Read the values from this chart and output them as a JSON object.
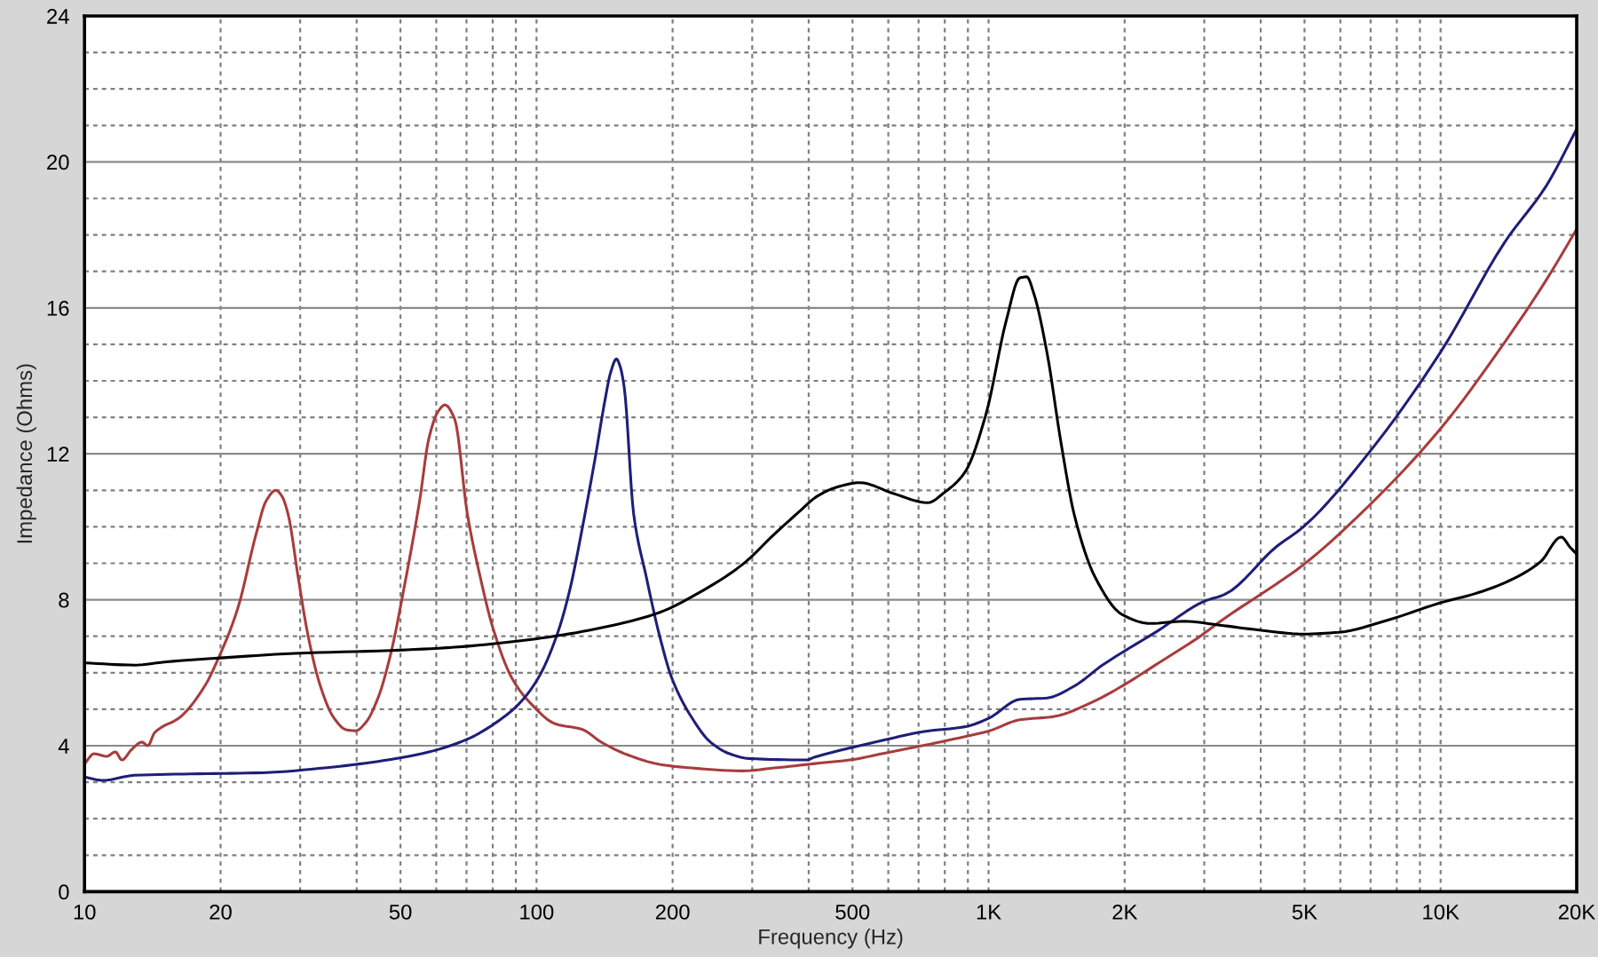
{
  "chart_data": {
    "type": "line",
    "xlabel": "Frequency (Hz)",
    "ylabel": "Impedance (Ohms)",
    "log": "x",
    "grid": true,
    "xlim": [
      10,
      20000
    ],
    "ylim": [
      0,
      24
    ],
    "xticks": [
      10,
      20,
      {
        "value": 30,
        "label": null
      },
      {
        "value": 40,
        "label": null
      },
      50,
      {
        "value": 60,
        "label": null
      },
      {
        "value": 70,
        "label": null
      },
      {
        "value": 80,
        "label": null
      },
      {
        "value": 90,
        "label": null
      },
      100,
      200,
      {
        "value": 300,
        "label": null
      },
      {
        "value": 400,
        "label": null
      },
      500,
      {
        "value": 600,
        "label": null
      },
      {
        "value": 700,
        "label": null
      },
      {
        "value": 800,
        "label": null
      },
      {
        "value": 900,
        "label": null
      },
      {
        "value": 1000,
        "label": "1K"
      },
      {
        "value": 2000,
        "label": "2K"
      },
      {
        "value": 3000,
        "label": null
      },
      {
        "value": 4000,
        "label": null
      },
      {
        "value": 5000,
        "label": "5K"
      },
      {
        "value": 6000,
        "label": null
      },
      {
        "value": 7000,
        "label": null
      },
      {
        "value": 8000,
        "label": null
      },
      {
        "value": 9000,
        "label": null
      },
      {
        "value": 10000,
        "label": "10K"
      },
      {
        "value": 20000,
        "label": "20K"
      }
    ],
    "yticks": [
      0,
      {
        "value": 1,
        "label": null
      },
      {
        "value": 2,
        "label": null
      },
      {
        "value": 3,
        "label": null
      },
      4,
      {
        "value": 5,
        "label": null
      },
      {
        "value": 6,
        "label": null
      },
      {
        "value": 7,
        "label": null
      },
      8,
      {
        "value": 9,
        "label": null
      },
      {
        "value": 10,
        "label": null
      },
      {
        "value": 11,
        "label": null
      },
      12,
      {
        "value": 13,
        "label": null
      },
      {
        "value": 14,
        "label": null
      },
      {
        "value": 15,
        "label": null
      },
      16,
      {
        "value": 17,
        "label": null
      },
      {
        "value": 18,
        "label": null
      },
      {
        "value": 19,
        "label": null
      },
      20,
      {
        "value": 21,
        "label": null
      },
      {
        "value": 22,
        "label": null
      },
      {
        "value": 23,
        "label": null
      },
      24
    ],
    "series": [
      {
        "color": "#a83c3c",
        "x": [
          10,
          10.5,
          11.2,
          11.7,
          12.1,
          12.7,
          13.4,
          13.8,
          14.3,
          16.3,
          18.5,
          19.7,
          21.8,
          24,
          25.2,
          26.5,
          27.3,
          28.2,
          29.7,
          31.2,
          33.2,
          35.5,
          37.9,
          39.8,
          41.8,
          44.6,
          47.6,
          50.8,
          55.1,
          57.8,
          60.5,
          62.7,
          65.9,
          70.3,
          75.1,
          80.1,
          88.4,
          97.4,
          110,
          126,
          139,
          159,
          187,
          220,
          285,
          336,
          413,
          500,
          585,
          700,
          887,
          1000,
          1172,
          1396,
          1700,
          1977,
          2400,
          2891,
          3334,
          4328,
          4972,
          6930,
          9954,
          13880,
          17140,
          20000
        ],
        "values": [
          3.5,
          3.78,
          3.71,
          3.83,
          3.61,
          3.89,
          4.1,
          4.0,
          4.36,
          4.79,
          5.66,
          6.35,
          7.74,
          9.83,
          10.7,
          11.0,
          10.85,
          10.35,
          8.61,
          7.04,
          5.66,
          4.79,
          4.44,
          4.41,
          4.62,
          5.31,
          6.53,
          8.26,
          10.7,
          12.43,
          13.15,
          13.34,
          12.95,
          10.35,
          8.61,
          7.22,
          5.83,
          5.14,
          4.6,
          4.45,
          4.1,
          3.75,
          3.49,
          3.39,
          3.31,
          3.39,
          3.51,
          3.62,
          3.79,
          3.98,
          4.25,
          4.4,
          4.71,
          4.8,
          5.2,
          5.64,
          6.3,
          6.94,
          7.5,
          8.43,
          8.96,
          10.57,
          12.66,
          15.07,
          16.77,
          18.16
        ]
      },
      {
        "color": "#1e1e78",
        "x": [
          10,
          11,
          12.9,
          17.9,
          24.8,
          34.4,
          44.6,
          57.8,
          70.3,
          82.8,
          91.3,
          100.6,
          111,
          118.4,
          126.4,
          134.9,
          141.7,
          146,
          150.2,
          153,
          156.3,
          164,
          175,
          186.9,
          199.5,
          220,
          242.4,
          267.3,
          294.8,
          395,
          413,
          585,
          720,
          887,
          1000,
          1172,
          1348,
          1550,
          1782,
          2355,
          3003,
          3334,
          4328,
          4972,
          6930,
          9954,
          13880,
          17140,
          20000
        ],
        "values": [
          3.14,
          3.05,
          3.19,
          3.23,
          3.26,
          3.4,
          3.57,
          3.83,
          4.18,
          4.7,
          5.14,
          5.83,
          7.04,
          8.26,
          10.0,
          11.91,
          13.47,
          14.25,
          14.6,
          14.4,
          13.82,
          10.35,
          8.61,
          7.04,
          5.83,
          4.79,
          4.1,
          3.78,
          3.65,
          3.61,
          3.69,
          4.15,
          4.39,
          4.52,
          4.75,
          5.27,
          5.31,
          5.64,
          6.2,
          7.13,
          7.96,
          8.15,
          9.45,
          10.0,
          12.02,
          14.75,
          17.81,
          19.35,
          20.9
        ]
      },
      {
        "color": "#000000",
        "x": [
          10,
          12.9,
          15.2,
          19.7,
          29.2,
          47.6,
          65.9,
          91.3,
          114.7,
          148.8,
          186.9,
          227,
          285,
          336,
          380,
          418,
          460,
          518,
          620,
          733,
          800,
          887,
          986,
          1095,
          1172,
          1215,
          1258,
          1348,
          1445,
          1550,
          1722,
          1977,
          2274,
          2708,
          3221,
          3972,
          4972,
          5957,
          7586,
          9954,
          11930,
          13880,
          16630,
          18480,
          19340,
          20000
        ],
        "values": [
          6.27,
          6.21,
          6.3,
          6.4,
          6.53,
          6.61,
          6.7,
          6.87,
          7.04,
          7.31,
          7.65,
          8.17,
          8.96,
          9.8,
          10.4,
          10.84,
          11.08,
          11.21,
          10.9,
          10.66,
          10.95,
          11.5,
          13.07,
          15.67,
          16.82,
          16.85,
          16.41,
          14.74,
          12.33,
          10.29,
          8.61,
          7.59,
          7.35,
          7.41,
          7.31,
          7.17,
          7.06,
          7.11,
          7.43,
          7.91,
          8.17,
          8.47,
          9.04,
          9.72,
          9.44,
          9.25
        ]
      }
    ]
  }
}
